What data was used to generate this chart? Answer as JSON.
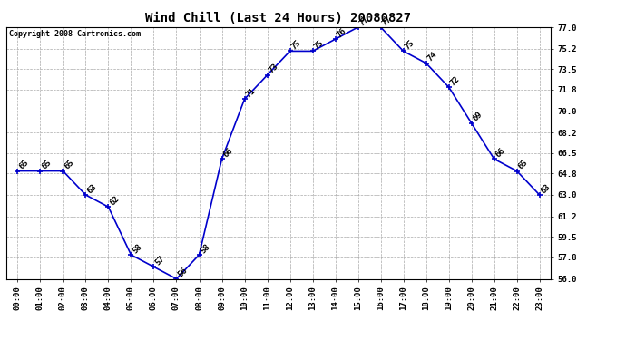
{
  "title": "Wind Chill (Last 24 Hours) 20080827",
  "copyright": "Copyright 2008 Cartronics.com",
  "hours": [
    "00:00",
    "01:00",
    "02:00",
    "03:00",
    "04:00",
    "05:00",
    "06:00",
    "07:00",
    "08:00",
    "09:00",
    "10:00",
    "11:00",
    "12:00",
    "13:00",
    "14:00",
    "15:00",
    "16:00",
    "17:00",
    "18:00",
    "19:00",
    "20:00",
    "21:00",
    "22:00",
    "23:00"
  ],
  "values": [
    65,
    65,
    65,
    63,
    62,
    58,
    57,
    56,
    58,
    66,
    71,
    73,
    75,
    75,
    76,
    77,
    77,
    75,
    74,
    72,
    69,
    66,
    65,
    63
  ],
  "ylim": [
    56.0,
    77.0
  ],
  "yticks": [
    56.0,
    57.8,
    59.5,
    61.2,
    63.0,
    64.8,
    66.5,
    68.2,
    70.0,
    71.8,
    73.5,
    75.2,
    77.0
  ],
  "line_color": "#0000cc",
  "marker_color": "#0000cc",
  "bg_color": "#ffffff",
  "grid_color": "#aaaaaa",
  "text_color": "#000000",
  "title_fontsize": 10,
  "label_fontsize": 6.5,
  "tick_fontsize": 6.5,
  "copyright_fontsize": 6
}
